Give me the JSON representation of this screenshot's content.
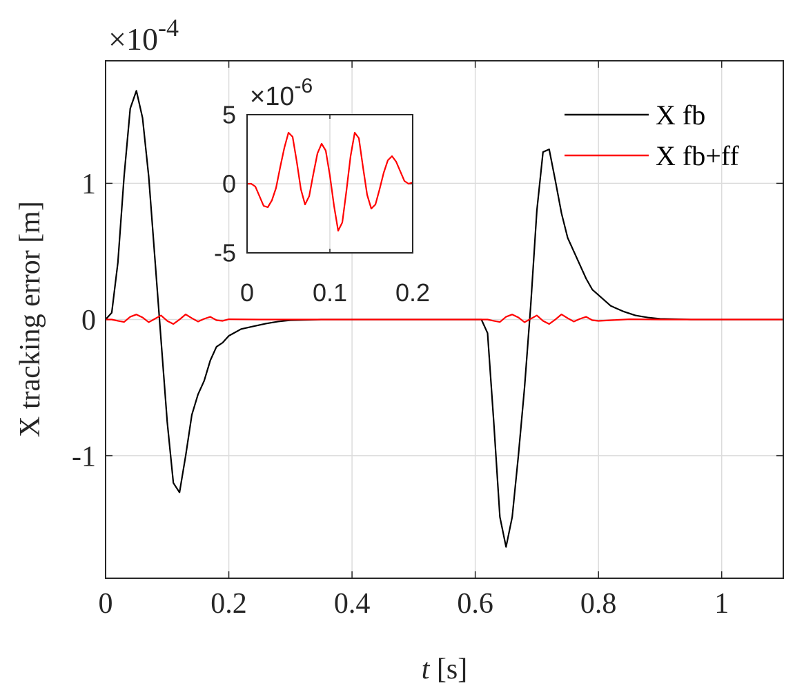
{
  "chart_data": [
    {
      "type": "line",
      "title": "",
      "xlabel_italic": "t",
      "xlabel_rest": " [s]",
      "ylabel": "X tracking error [m]",
      "y_multiplier_base": "×10",
      "y_multiplier_exp": "-4",
      "xlim": [
        0,
        1.1
      ],
      "ylim": [
        -1.9,
        1.9
      ],
      "grid": true,
      "legend_position": "top-right",
      "x_ticks": [
        0,
        0.2,
        0.4,
        0.6,
        0.8,
        1
      ],
      "x_tick_labels": [
        "0",
        "0.2",
        "0.4",
        "0.6",
        "0.8",
        "1"
      ],
      "y_ticks": [
        -1,
        0,
        1
      ],
      "y_tick_labels": [
        "-1",
        "0",
        "1"
      ],
      "series": [
        {
          "name": "X fb",
          "color": "#000000",
          "x": [
            0,
            0.01,
            0.02,
            0.03,
            0.04,
            0.05,
            0.06,
            0.07,
            0.08,
            0.09,
            0.1,
            0.11,
            0.12,
            0.13,
            0.14,
            0.15,
            0.16,
            0.17,
            0.18,
            0.19,
            0.2,
            0.22,
            0.24,
            0.26,
            0.28,
            0.3,
            0.35,
            0.4,
            0.45,
            0.5,
            0.55,
            0.6,
            0.61,
            0.62,
            0.63,
            0.64,
            0.65,
            0.66,
            0.67,
            0.68,
            0.69,
            0.7,
            0.71,
            0.72,
            0.73,
            0.74,
            0.75,
            0.76,
            0.77,
            0.78,
            0.79,
            0.8,
            0.82,
            0.84,
            0.86,
            0.88,
            0.9,
            0.95,
            1.0,
            1.05,
            1.1
          ],
          "y": [
            0,
            0.05,
            0.42,
            1.05,
            1.55,
            1.68,
            1.48,
            1.05,
            0.45,
            -0.15,
            -0.75,
            -1.2,
            -1.27,
            -1.0,
            -0.7,
            -0.55,
            -0.45,
            -0.3,
            -0.2,
            -0.17,
            -0.12,
            -0.07,
            -0.05,
            -0.03,
            -0.015,
            -0.005,
            0,
            0,
            0,
            0,
            0,
            0,
            0,
            -0.1,
            -0.75,
            -1.45,
            -1.67,
            -1.45,
            -1.0,
            -0.5,
            0.1,
            0.8,
            1.23,
            1.25,
            1.02,
            0.78,
            0.6,
            0.5,
            0.4,
            0.3,
            0.22,
            0.18,
            0.1,
            0.06,
            0.03,
            0.015,
            0.005,
            0,
            0,
            0,
            0
          ]
        },
        {
          "name": "X fb+ff",
          "color": "#ff0000",
          "x": [
            0,
            0.01,
            0.02,
            0.03,
            0.04,
            0.05,
            0.06,
            0.07,
            0.08,
            0.09,
            0.1,
            0.11,
            0.12,
            0.13,
            0.14,
            0.15,
            0.16,
            0.17,
            0.18,
            0.19,
            0.2,
            0.25,
            0.3,
            0.4,
            0.5,
            0.6,
            0.61,
            0.62,
            0.63,
            0.64,
            0.65,
            0.66,
            0.67,
            0.68,
            0.69,
            0.7,
            0.71,
            0.72,
            0.73,
            0.74,
            0.75,
            0.76,
            0.77,
            0.78,
            0.79,
            0.8,
            0.85,
            0.9,
            1.0,
            1.1
          ],
          "y": [
            0,
            0,
            -0.01,
            -0.018,
            0.02,
            0.037,
            0.015,
            -0.02,
            0.005,
            0.03,
            -0.01,
            -0.033,
            0.0,
            0.038,
            0.01,
            -0.015,
            0.005,
            0.02,
            -0.005,
            -0.01,
            0.002,
            0,
            0,
            0,
            0,
            0,
            0,
            0,
            -0.01,
            -0.018,
            0.02,
            0.037,
            0.015,
            -0.02,
            0.005,
            0.03,
            -0.01,
            -0.033,
            0.0,
            0.038,
            0.01,
            -0.015,
            0.005,
            0.02,
            -0.005,
            -0.01,
            0.002,
            0,
            0,
            0
          ]
        }
      ]
    },
    {
      "type": "line",
      "title": "",
      "inset": true,
      "xlim": [
        0,
        0.2
      ],
      "ylim": [
        -5,
        5
      ],
      "grid": true,
      "y_multiplier_base": "×10",
      "y_multiplier_exp": "-6",
      "x_ticks": [
        0,
        0.1,
        0.2
      ],
      "x_tick_labels": [
        "0",
        "0.1",
        "0.2"
      ],
      "y_ticks": [
        -5,
        0,
        5
      ],
      "y_tick_labels": [
        "-5",
        "0",
        "5"
      ],
      "series": [
        {
          "name": "",
          "color": "#ff0000",
          "x": [
            0,
            0.005,
            0.01,
            0.015,
            0.02,
            0.025,
            0.03,
            0.035,
            0.04,
            0.045,
            0.05,
            0.055,
            0.06,
            0.065,
            0.07,
            0.075,
            0.08,
            0.085,
            0.09,
            0.095,
            0.1,
            0.105,
            0.11,
            0.115,
            0.12,
            0.125,
            0.13,
            0.135,
            0.14,
            0.145,
            0.15,
            0.155,
            0.16,
            0.165,
            0.17,
            0.175,
            0.18,
            0.185,
            0.19,
            0.195,
            0.2
          ],
          "y": [
            0,
            0,
            -0.2,
            -0.9,
            -1.6,
            -1.7,
            -1.2,
            -0.3,
            1.2,
            2.6,
            3.7,
            3.4,
            1.6,
            -0.4,
            -1.5,
            -0.9,
            0.7,
            2.2,
            2.9,
            2.4,
            0.6,
            -1.6,
            -3.4,
            -2.8,
            -0.5,
            2.0,
            3.7,
            3.3,
            1.2,
            -0.8,
            -1.8,
            -1.5,
            -0.4,
            0.8,
            1.7,
            2.0,
            1.6,
            0.9,
            0.2,
            0,
            0.1
          ]
        }
      ]
    }
  ]
}
